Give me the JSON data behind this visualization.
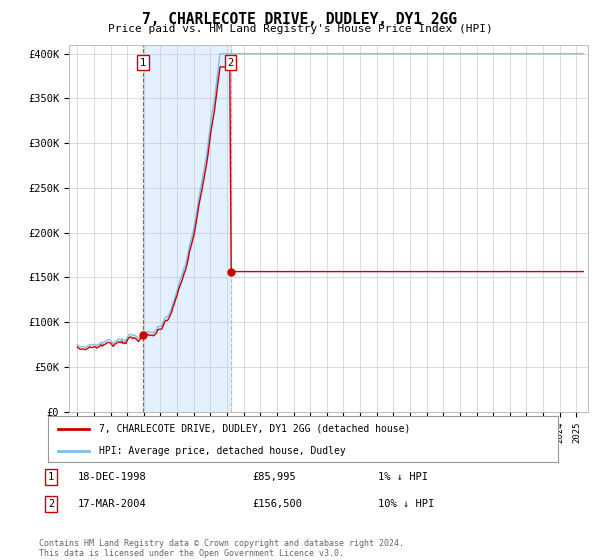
{
  "title": "7, CHARLECOTE DRIVE, DUDLEY, DY1 2GG",
  "subtitle": "Price paid vs. HM Land Registry's House Price Index (HPI)",
  "ylabel_ticks": [
    "£0",
    "£50K",
    "£100K",
    "£150K",
    "£200K",
    "£250K",
    "£300K",
    "£350K",
    "£400K"
  ],
  "ytick_values": [
    0,
    50000,
    100000,
    150000,
    200000,
    250000,
    300000,
    350000,
    400000
  ],
  "ylim": [
    0,
    410000
  ],
  "hpi_color": "#7fbfea",
  "price_color": "#cc0000",
  "vline_color": "#cc0000",
  "shade_color": "#ddeeff",
  "legend_entries": [
    "7, CHARLECOTE DRIVE, DUDLEY, DY1 2GG (detached house)",
    "HPI: Average price, detached house, Dudley"
  ],
  "transaction1_label": "1",
  "transaction1_date": "18-DEC-1998",
  "transaction1_price": "£85,995",
  "transaction1_hpi": "1% ↓ HPI",
  "transaction1_year": 1998.96,
  "transaction1_value": 85995,
  "transaction2_label": "2",
  "transaction2_date": "17-MAR-2004",
  "transaction2_price": "£156,500",
  "transaction2_hpi": "10% ↓ HPI",
  "transaction2_year": 2004.21,
  "transaction2_value": 156500,
  "footnote": "Contains HM Land Registry data © Crown copyright and database right 2024.\nThis data is licensed under the Open Government Licence v3.0.",
  "bg_color": "#ffffff",
  "plot_bg_color": "#ffffff"
}
